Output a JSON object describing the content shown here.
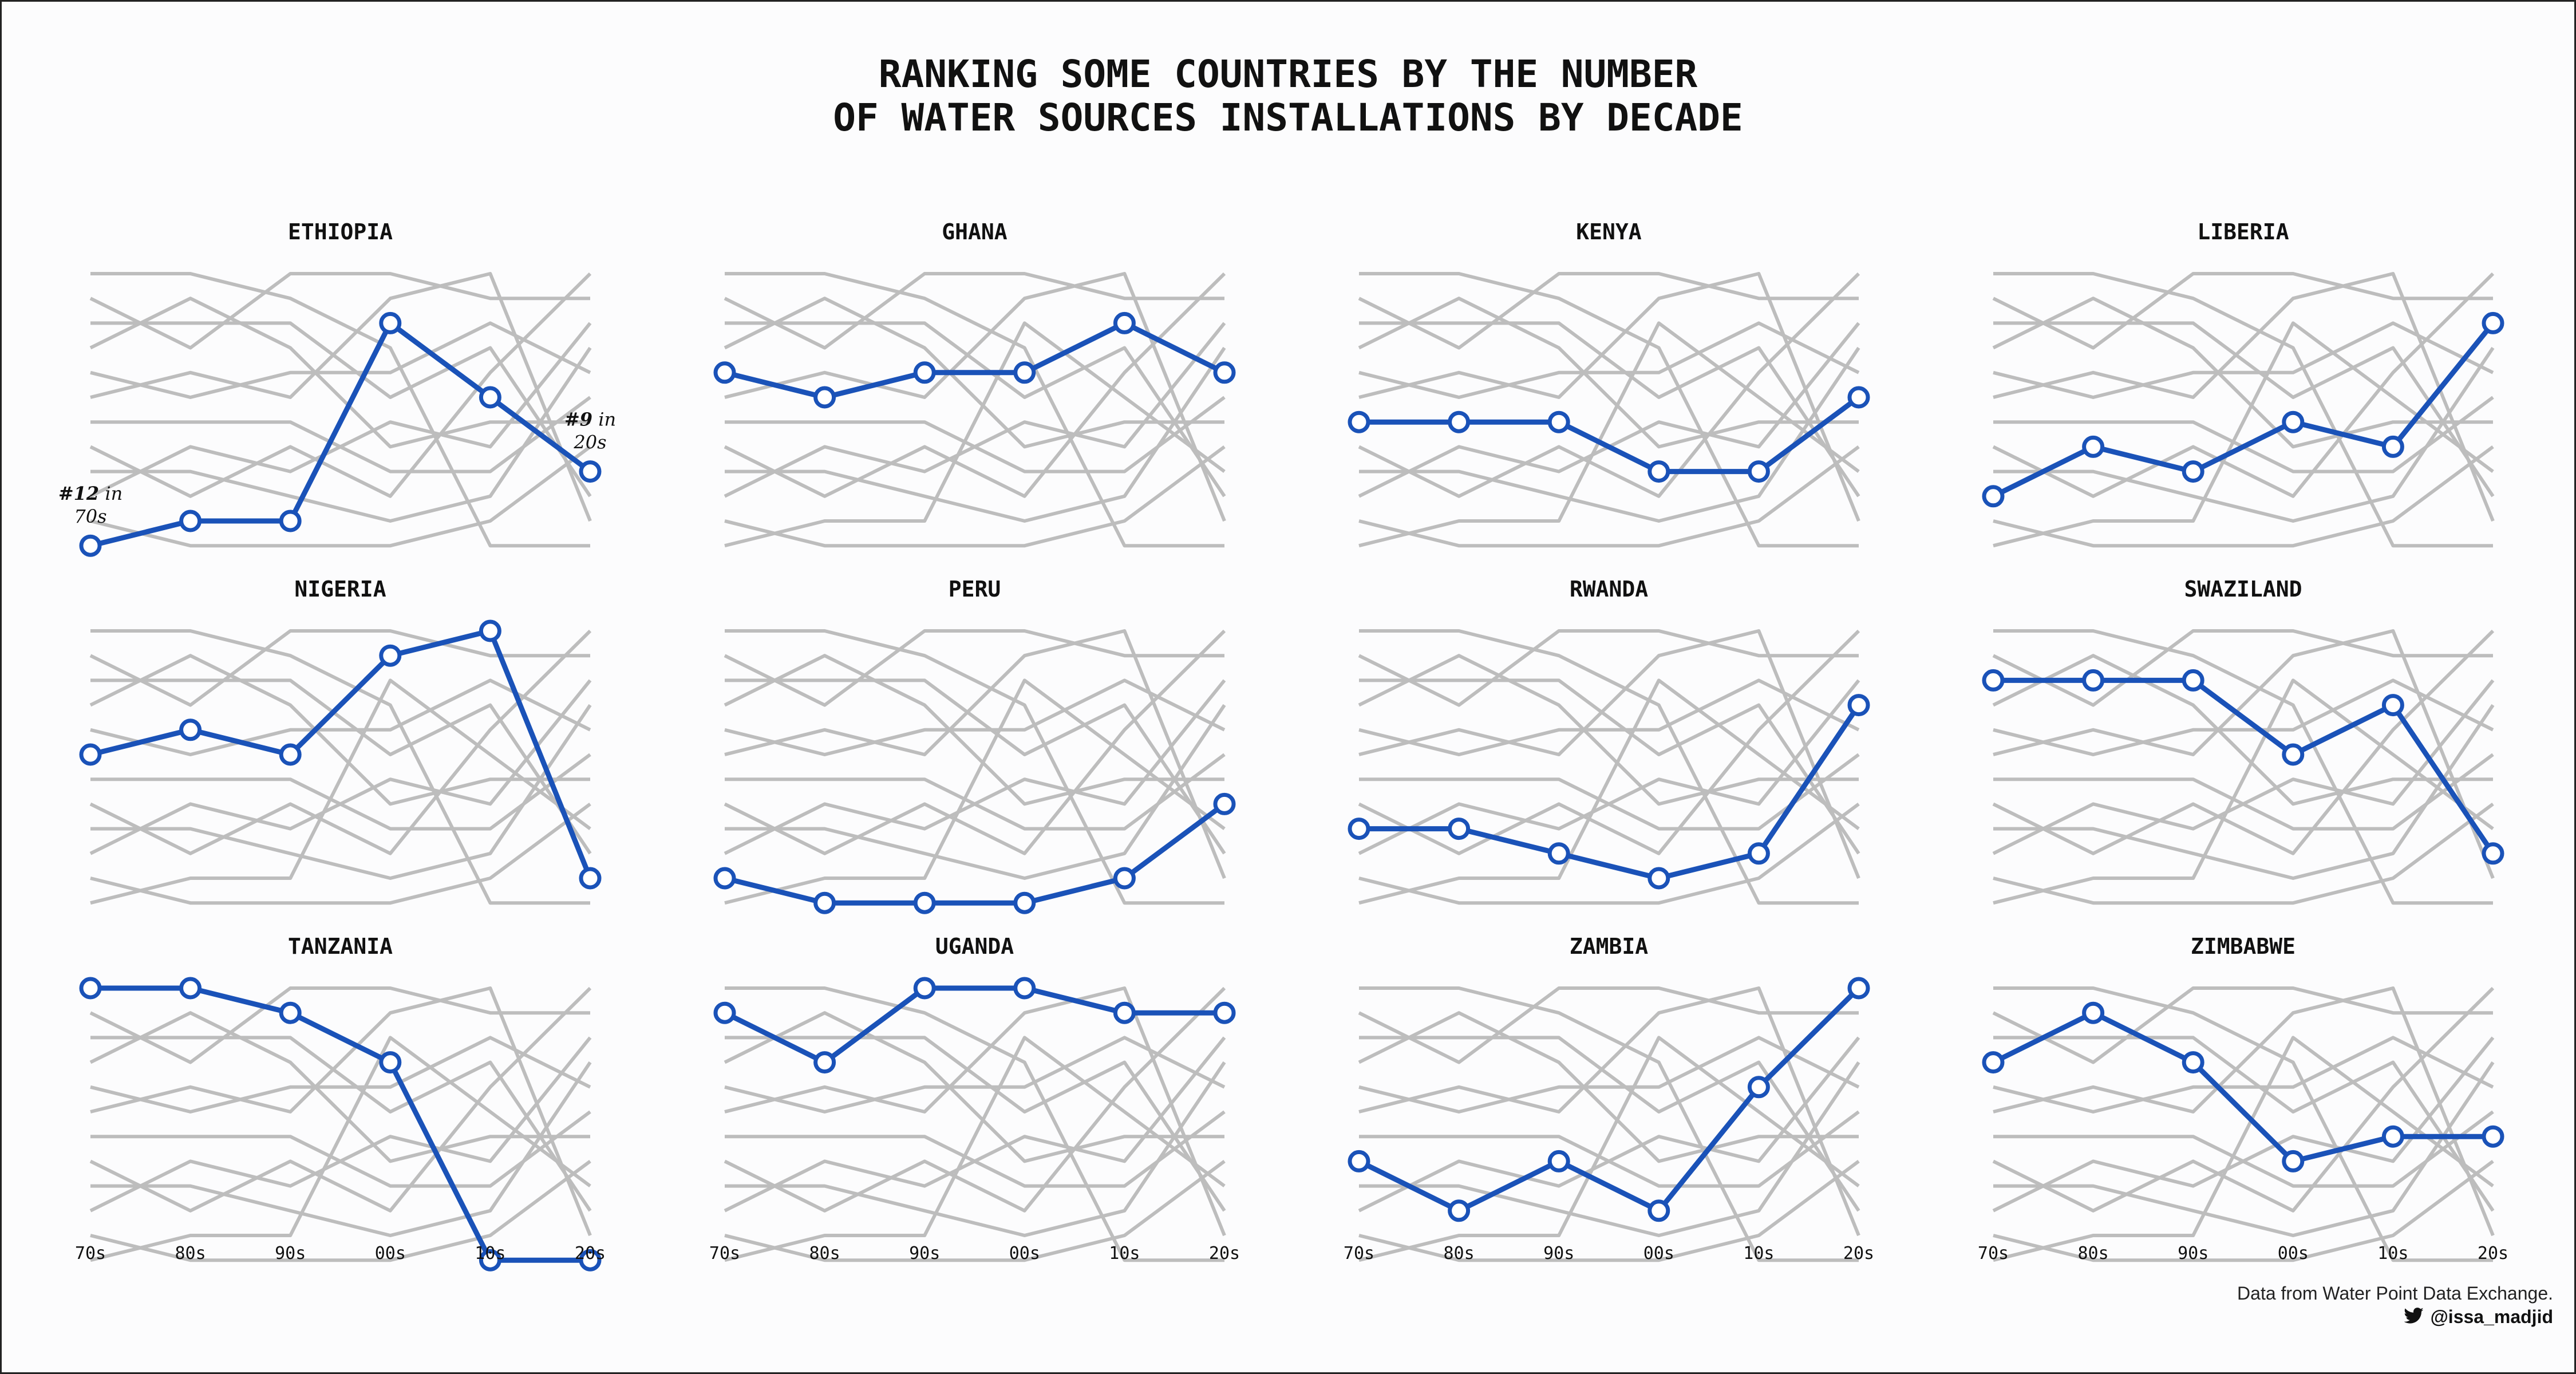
{
  "chart_data": {
    "type": "line",
    "title": "RANKING SOME COUNTRIES BY THE NUMBER\nOF WATER SOURCES INSTALLATIONS BY DECADE",
    "x": [
      "70s",
      "80s",
      "90s",
      "00s",
      "10s",
      "20s"
    ],
    "y_axis": "rank",
    "ylim": [
      12,
      1
    ],
    "grid": false,
    "layout": "small multiples, 3 rows x 4 columns; each panel highlights one country and shows all others in grey",
    "series": [
      {
        "name": "ETHIOPIA",
        "values": [
          12,
          11,
          11,
          3,
          6,
          9
        ]
      },
      {
        "name": "GHANA",
        "values": [
          5,
          6,
          5,
          5,
          3,
          5
        ]
      },
      {
        "name": "KENYA",
        "values": [
          7,
          7,
          7,
          9,
          9,
          6
        ]
      },
      {
        "name": "LIBERIA",
        "values": [
          10,
          8,
          9,
          7,
          8,
          3
        ]
      },
      {
        "name": "NIGERIA",
        "values": [
          6,
          5,
          6,
          2,
          1,
          11
        ]
      },
      {
        "name": "PERU",
        "values": [
          11,
          12,
          12,
          12,
          11,
          8
        ]
      },
      {
        "name": "RWANDA",
        "values": [
          9,
          9,
          10,
          11,
          10,
          4
        ]
      },
      {
        "name": "SWAZILAND",
        "values": [
          3,
          3,
          3,
          6,
          4,
          10
        ]
      },
      {
        "name": "TANZANIA",
        "values": [
          1,
          1,
          2,
          4,
          12,
          12
        ]
      },
      {
        "name": "UGANDA",
        "values": [
          2,
          4,
          1,
          1,
          2,
          2
        ]
      },
      {
        "name": "ZAMBIA",
        "values": [
          8,
          10,
          8,
          10,
          5,
          1
        ]
      },
      {
        "name": "ZIMBABWE",
        "values": [
          4,
          2,
          4,
          8,
          7,
          7
        ]
      }
    ],
    "annotations": [
      {
        "panel": "ETHIOPIA",
        "x": "70s",
        "y": 12,
        "bold": "#12",
        "rest": " in",
        "line2": "70s"
      },
      {
        "panel": "ETHIOPIA",
        "x": "20s",
        "y": 9,
        "bold": "#9",
        "rest": " in",
        "line2": "20s"
      }
    ]
  },
  "caption": {
    "source": "Data from Water Point Data Exchange.",
    "handle": "@issa_madjid",
    "handle_icon": "twitter-bird-icon"
  },
  "colors": {
    "highlight": "#1a52b8",
    "background_lines": "#bdbdbd",
    "background": "#fcfcfd"
  }
}
